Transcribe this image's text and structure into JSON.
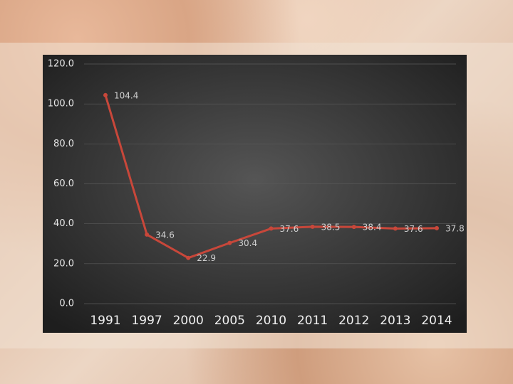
{
  "chart_data": {
    "type": "line",
    "categories": [
      "1991",
      "1997",
      "2000",
      "2005",
      "2010",
      "2011",
      "2012",
      "2013",
      "2014"
    ],
    "values": [
      104.4,
      34.6,
      22.9,
      30.4,
      37.6,
      38.5,
      38.4,
      37.6,
      37.8
    ],
    "color": "#c8473a",
    "ylim": [
      0,
      120
    ],
    "yticks": [
      {
        "value": 0,
        "label": "0.0"
      },
      {
        "value": 20,
        "label": "20.0"
      },
      {
        "value": 40,
        "label": "40.0"
      },
      {
        "value": 60,
        "label": "60.0"
      },
      {
        "value": 80,
        "label": "80.0"
      },
      {
        "value": 100,
        "label": "100.0"
      },
      {
        "value": 120,
        "label": "120.0"
      }
    ],
    "grid": true
  }
}
